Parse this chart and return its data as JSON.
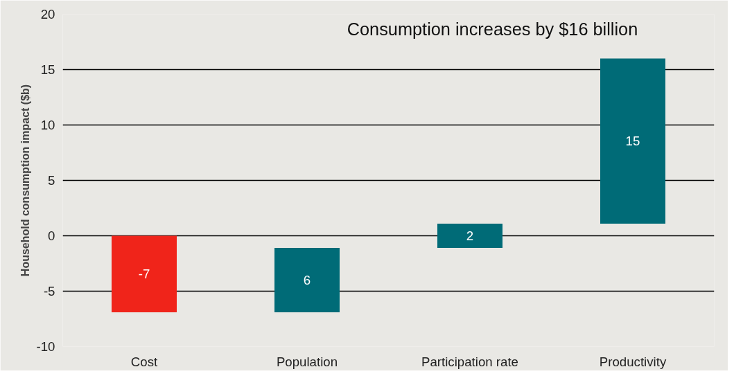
{
  "chart_data": {
    "type": "bar",
    "ylabel": "Household consumption impact ($b)",
    "categories": [
      "Cost",
      "Population",
      "Participation rate",
      "Productivity"
    ],
    "values": [
      -6.9,
      5.8,
      2.2,
      14.9
    ],
    "base": [
      0,
      -6.9,
      -1.1,
      1.1
    ],
    "colors": [
      "#f0241a",
      "#006b77",
      "#006b77",
      "#006b77"
    ],
    "value_labels": [
      "-7",
      "6",
      "2",
      "15"
    ],
    "annotations": [
      "Consumption increases by $16 billion"
    ],
    "ylim": [
      -10,
      20
    ],
    "yticks": [
      -10,
      -5,
      0,
      5,
      10,
      15,
      20
    ],
    "grid": "y"
  }
}
